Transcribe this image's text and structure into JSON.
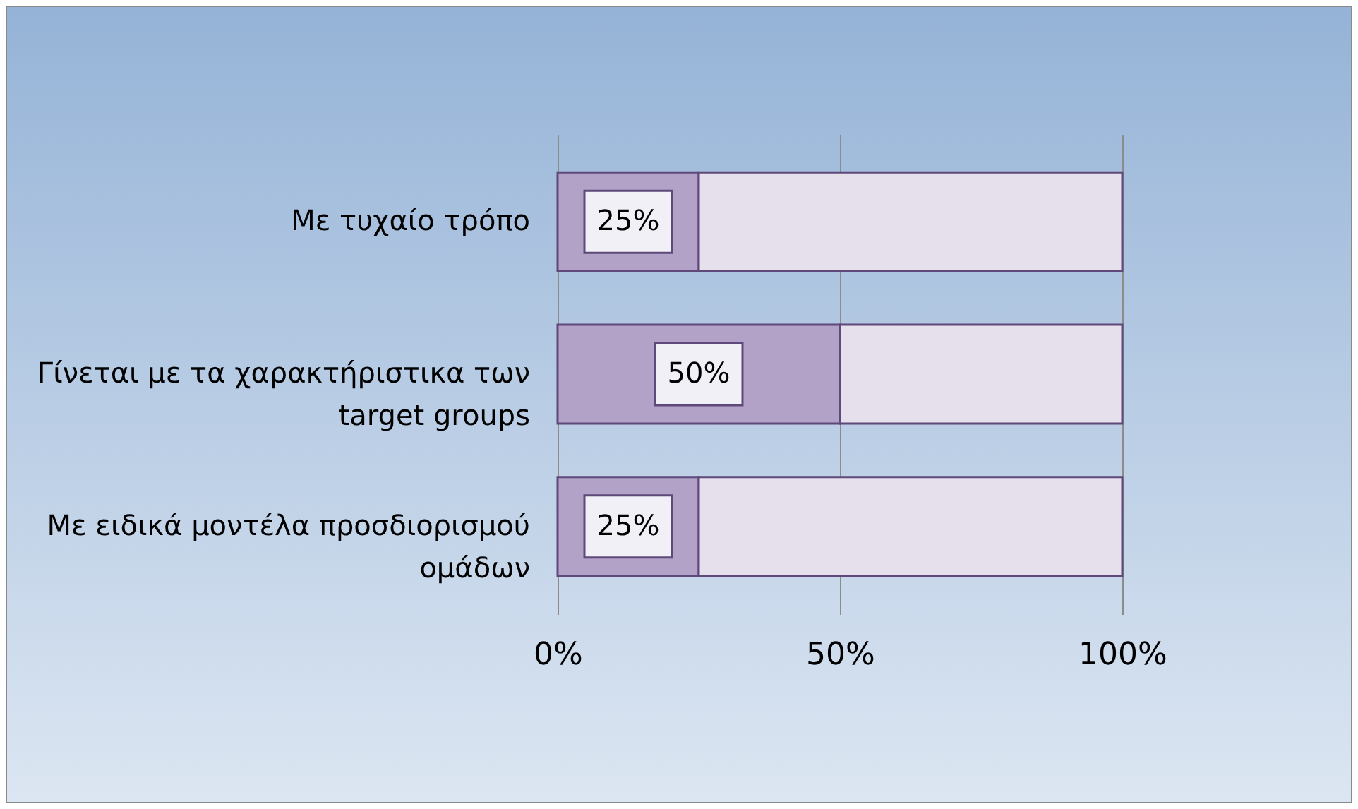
{
  "chart_data": {
    "type": "bar",
    "orientation": "horizontal",
    "stacked": true,
    "categories": [
      "Με τυχαίο τρόπο",
      "Γίνεται με τα χαρακτήριστικα των target groups",
      "Με ειδικά μοντέλα προσδιορισμού ομάδων"
    ],
    "series": [
      {
        "color": "#b3a2c7",
        "values": [
          0.25,
          0.5,
          0.25
        ],
        "value_labels": [
          "25%",
          "50%",
          "25%"
        ]
      },
      {
        "color": "#e6e0ec",
        "values": [
          0.75,
          0.5,
          0.75
        ]
      }
    ],
    "xlim": [
      0,
      1
    ],
    "xticks": [
      {
        "value": 0,
        "label": "0%"
      },
      {
        "value": 0.5,
        "label": "50%"
      },
      {
        "value": 1,
        "label": "100%"
      }
    ],
    "grid": "x",
    "legend": false
  }
}
